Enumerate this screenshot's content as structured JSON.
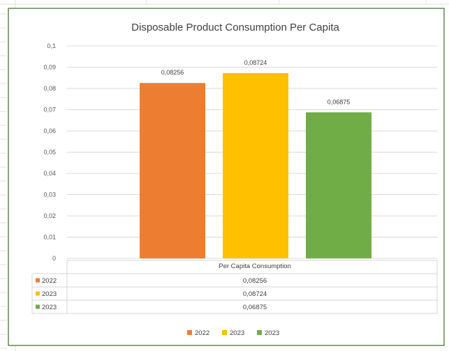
{
  "chart_data": {
    "type": "bar",
    "title": "Disposable Product Consumption Per Capita",
    "category_label": "Per Capita Consumption",
    "yticks": [
      "0",
      "0,01",
      "0,02",
      "0,03",
      "0,04",
      "0,05",
      "0,06",
      "0,07",
      "0,08",
      "0,09",
      "0,1"
    ],
    "ylim": [
      0,
      0.1
    ],
    "grid": true,
    "legend_position": "bottom",
    "series": [
      {
        "name": "2022",
        "value": 0.08256,
        "label": "0,08256",
        "color": "#ED7D31"
      },
      {
        "name": "2023",
        "value": 0.08724,
        "label": "0,08724",
        "color": "#FFC000"
      },
      {
        "name": "2023",
        "value": 0.06875,
        "label": "0,06875",
        "color": "#70AD47"
      }
    ]
  }
}
